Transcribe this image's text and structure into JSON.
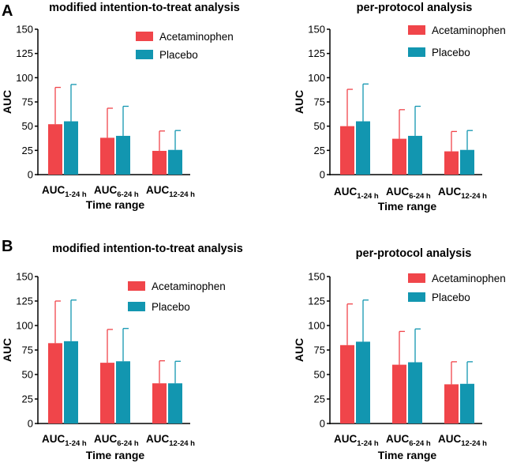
{
  "panels": [
    {
      "letter": "A"
    },
    {
      "letter": "B"
    }
  ],
  "colors": {
    "acetaminophen": "#f0454a",
    "placebo": "#1296b0",
    "axis": "#000000"
  },
  "chart_data": [
    {
      "type": "bar",
      "panel": "A",
      "title": "modified intention-to-treat analysis",
      "xlabel": "Time range",
      "ylabel": "AUC",
      "categories": [
        {
          "main": "AUC",
          "sub": "1-24 h"
        },
        {
          "main": "AUC",
          "sub": "6-24 h"
        },
        {
          "main": "AUC",
          "sub": "12-24 h"
        }
      ],
      "yticks": [
        "0",
        "25",
        "50",
        "75",
        "100",
        "125",
        "150"
      ],
      "ylim": [
        0,
        150
      ],
      "legend_position": "top-right",
      "series": [
        {
          "name": "Acetaminophen",
          "values": [
            52,
            38,
            24.5
          ],
          "error": [
            38,
            30.5,
            20.5
          ]
        },
        {
          "name": "Placebo",
          "values": [
            55,
            40,
            25.5
          ],
          "error": [
            38,
            30.5,
            20
          ]
        }
      ]
    },
    {
      "type": "bar",
      "panel": "A",
      "title": "per-protocol analysis",
      "xlabel": "Time range",
      "ylabel": "AUC",
      "categories": [
        {
          "main": "AUC",
          "sub": "1-24 h"
        },
        {
          "main": "AUC",
          "sub": "6-24 h"
        },
        {
          "main": "AUC",
          "sub": "12-24 h"
        }
      ],
      "yticks": [
        "0",
        "25",
        "50",
        "75",
        "100",
        "125",
        "150"
      ],
      "ylim": [
        0,
        150
      ],
      "legend_position": "top-right",
      "series": [
        {
          "name": "Acetaminophen",
          "values": [
            50,
            37,
            24
          ],
          "error": [
            38,
            30,
            20.5
          ]
        },
        {
          "name": "Placebo",
          "values": [
            55,
            40,
            25.5
          ],
          "error": [
            38.5,
            30.5,
            20
          ]
        }
      ]
    },
    {
      "type": "bar",
      "panel": "B",
      "title": "modified intention-to-treat analysis",
      "xlabel": "Time range",
      "ylabel": "AUC",
      "categories": [
        {
          "main": "AUC",
          "sub": "1-24 h"
        },
        {
          "main": "AUC",
          "sub": "6-24 h"
        },
        {
          "main": "AUC",
          "sub": "12-24 h"
        }
      ],
      "yticks": [
        "0",
        "25",
        "50",
        "75",
        "100",
        "125",
        "150"
      ],
      "ylim": [
        0,
        150
      ],
      "legend_position": "top-right",
      "series": [
        {
          "name": "Acetaminophen",
          "values": [
            82,
            62,
            41
          ],
          "error": [
            43,
            34,
            23
          ]
        },
        {
          "name": "Placebo",
          "values": [
            84,
            63.5,
            41
          ],
          "error": [
            42,
            33.5,
            22.5
          ]
        }
      ]
    },
    {
      "type": "bar",
      "panel": "B",
      "title": "per-protocol analysis",
      "xlabel": "Time range",
      "ylabel": "AUC",
      "categories": [
        {
          "main": "AUC",
          "sub": "1-24 h"
        },
        {
          "main": "AUC",
          "sub": "6-24 h"
        },
        {
          "main": "AUC",
          "sub": "12-24 h"
        }
      ],
      "yticks": [
        "0",
        "25",
        "50",
        "75",
        "100",
        "125",
        "150"
      ],
      "ylim": [
        0,
        150
      ],
      "legend_position": "top-right",
      "series": [
        {
          "name": "Acetaminophen",
          "values": [
            80,
            60,
            40
          ],
          "error": [
            42,
            34,
            23
          ]
        },
        {
          "name": "Placebo",
          "values": [
            83.5,
            62.5,
            40.5
          ],
          "error": [
            42.5,
            34,
            22.5
          ]
        }
      ]
    }
  ]
}
